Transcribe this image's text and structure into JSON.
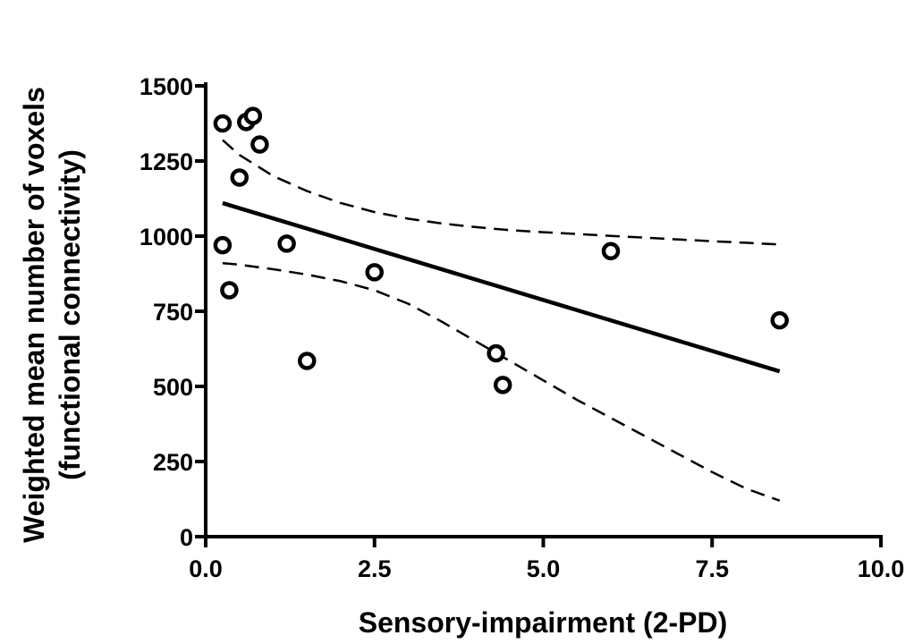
{
  "chart_data": {
    "type": "scatter",
    "title": "",
    "xlabel": "Sensory-impairment (2-PD)",
    "ylabel_lines": [
      "Weighted mean number of voxels",
      "(functional connectivity)"
    ],
    "xlim": [
      0,
      10
    ],
    "ylim": [
      0,
      1500
    ],
    "xticks": [
      0.0,
      2.5,
      5.0,
      7.5,
      10.0
    ],
    "xtick_labels": [
      "0.0",
      "2.5",
      "5.0",
      "7.5",
      "10.0"
    ],
    "yticks": [
      0,
      250,
      500,
      750,
      1000,
      1250,
      1500
    ],
    "ytick_labels": [
      "0",
      "250",
      "500",
      "750",
      "1000",
      "1250",
      "1500"
    ],
    "grid": false,
    "points": [
      {
        "x": 0.25,
        "y": 1375
      },
      {
        "x": 0.6,
        "y": 1380
      },
      {
        "x": 0.7,
        "y": 1400
      },
      {
        "x": 0.8,
        "y": 1305
      },
      {
        "x": 0.5,
        "y": 1195
      },
      {
        "x": 0.25,
        "y": 970
      },
      {
        "x": 0.35,
        "y": 820
      },
      {
        "x": 1.2,
        "y": 975
      },
      {
        "x": 1.5,
        "y": 585
      },
      {
        "x": 2.5,
        "y": 880
      },
      {
        "x": 4.3,
        "y": 610
      },
      {
        "x": 4.4,
        "y": 505
      },
      {
        "x": 6.0,
        "y": 950
      },
      {
        "x": 8.5,
        "y": 720
      }
    ],
    "regression_line": {
      "x": [
        0.25,
        8.5
      ],
      "y": [
        1110,
        550
      ]
    },
    "upper_ci": {
      "x": [
        0.25,
        0.5,
        1,
        1.5,
        2,
        2.5,
        3,
        3.5,
        4,
        4.5,
        5,
        5.5,
        6,
        6.5,
        7,
        7.5,
        8,
        8.5
      ],
      "y": [
        1320,
        1270,
        1200,
        1150,
        1110,
        1080,
        1058,
        1042,
        1030,
        1020,
        1013,
        1007,
        1001,
        995,
        989,
        983,
        978,
        972
      ]
    },
    "lower_ci": {
      "x": [
        0.25,
        0.5,
        1,
        1.5,
        2,
        2.5,
        3,
        3.5,
        4,
        4.5,
        5,
        5.5,
        6,
        6.5,
        7,
        7.5,
        8,
        8.5
      ],
      "y": [
        910,
        905,
        890,
        872,
        850,
        820,
        775,
        715,
        650,
        585,
        520,
        455,
        395,
        335,
        275,
        215,
        160,
        120
      ]
    },
    "styles": {
      "color": "#000000",
      "regression": "solid",
      "confidence_band": "dashed",
      "marker": "open-circle"
    }
  }
}
